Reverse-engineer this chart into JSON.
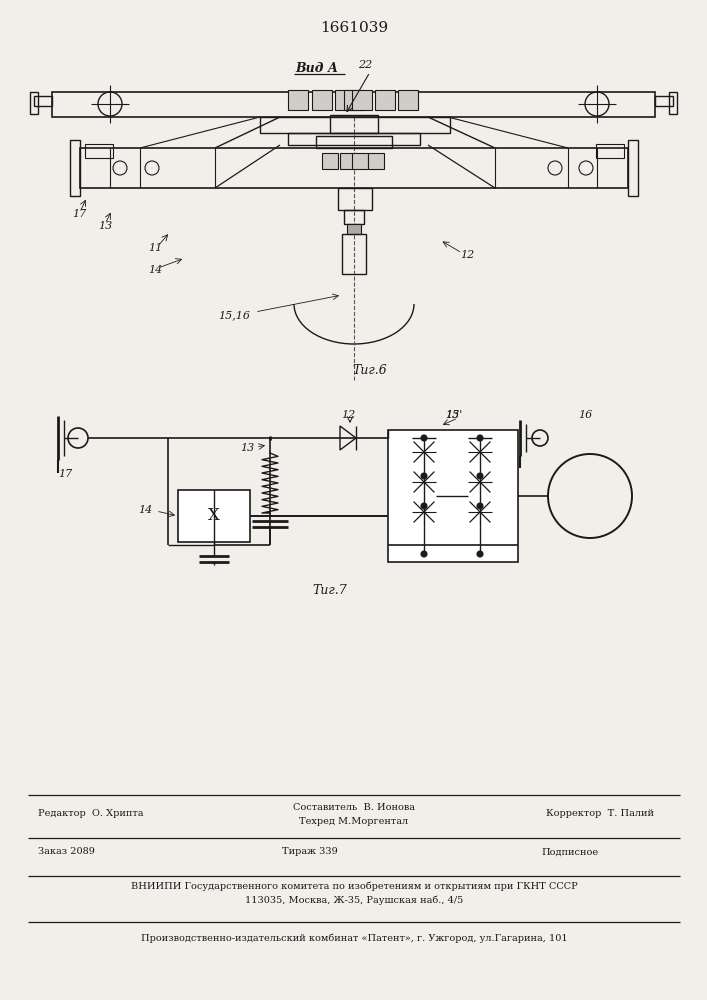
{
  "patent_number": "1661039",
  "bg_color": "#f2efea",
  "line_color": "#1a1a1a",
  "fig6_caption": "Τиг.6",
  "fig7_caption": "Τиг.7",
  "vid_a": "Вид А",
  "footer_editor": "Редактор  О. Хрипта",
  "footer_sost": "Составитель  В. Ионова",
  "footer_teh": "Техред М.Моргентал",
  "footer_corr": "Корректор  Т. Палий",
  "footer_zakaz": "Заказ 2089",
  "footer_tirazh": "Тираж 339",
  "footer_podp": "Подписное",
  "footer_vniip1": "ВНИИПИ Государственного комитета по изобретениям и открытиям при ГКНТ СССР",
  "footer_vniip2": "113035, Москва, Ж-35, Раушская наб., 4/5",
  "footer_patent": "Производственно-издательский комбинат «Патент», г. Ужгород, ул.Гагарина, 101"
}
